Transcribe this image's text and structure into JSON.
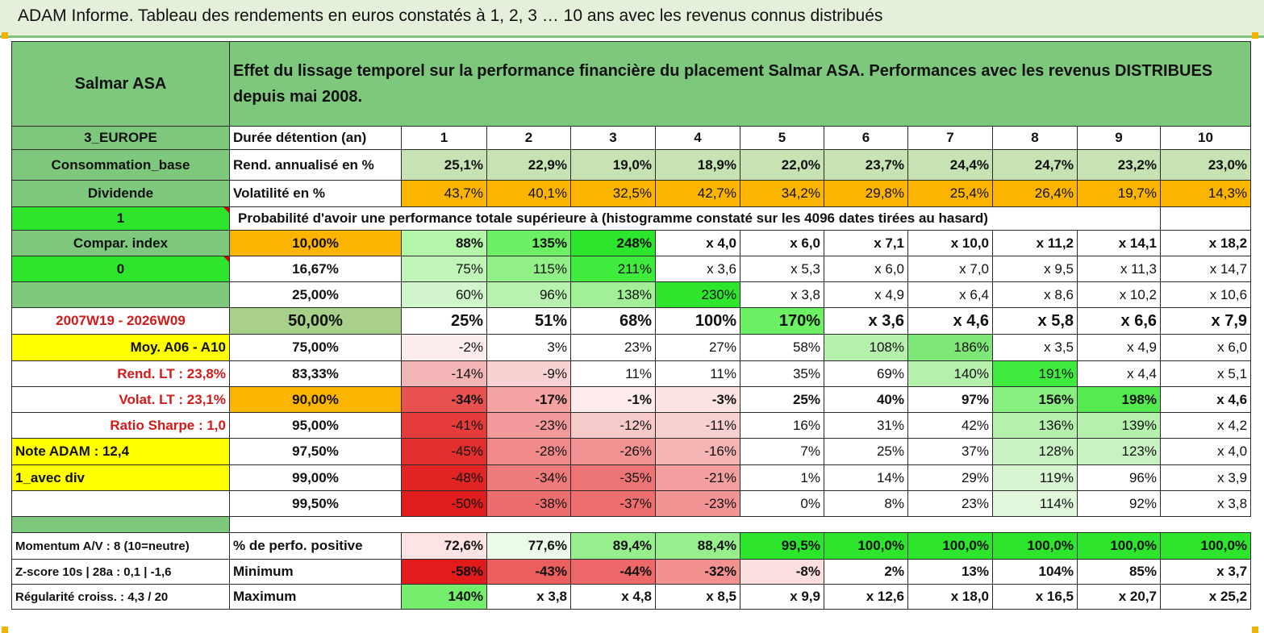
{
  "title": "ADAM Informe. Tableau des rendements en euros constatés à 1, 2, 3 … 10 ans avec les revenus connus distribués",
  "colors": {
    "header_green": "#7ec87e",
    "bright_green": "#2ce52c",
    "orange": "#fbb400",
    "yellow": "#ffff00",
    "light_green": "#c7e3b4",
    "sage": "#a7d08b"
  },
  "company": "Salmar ASA",
  "description": "Effet du lissage temporel sur la performance financière du placement Salmar ASA. Performances avec les revenus DISTRIBUES depuis mai 2008.",
  "rows": [
    {
      "left": "3_EUROPE",
      "label": "Durée détention (an)",
      "cells": [
        "1",
        "2",
        "3",
        "4",
        "5",
        "6",
        "7",
        "8",
        "9",
        "10"
      ]
    },
    {
      "left": "Consommation_base",
      "label": "Rend. annualisé en %",
      "cells": [
        "25,1%",
        "22,9%",
        "19,0%",
        "18,9%",
        "22,0%",
        "23,7%",
        "24,4%",
        "24,7%",
        "23,2%",
        "23,0%"
      ]
    },
    {
      "left": "Dividende",
      "label": "Volatilité en %",
      "cells": [
        "43,7%",
        "40,1%",
        "32,5%",
        "42,7%",
        "34,2%",
        "29,8%",
        "25,4%",
        "26,4%",
        "19,7%",
        "14,3%"
      ]
    },
    {
      "left": "1",
      "label": "Probabilité d'avoir une performance totale supérieure à (histogramme constaté sur les 4096 dates tirées au hasard)",
      "cells": []
    },
    {
      "left": "Compar. index",
      "label": "10,00%",
      "cells": [
        "88%",
        "135%",
        "248%",
        "x 4,0",
        "x 6,0",
        "x 7,1",
        "x 10,0",
        "x 11,2",
        "x 14,1",
        "x 18,2"
      ]
    },
    {
      "left": "0",
      "label": "16,67%",
      "cells": [
        "75%",
        "115%",
        "211%",
        "x 3,6",
        "x 5,3",
        "x 6,0",
        "x 7,0",
        "x 9,5",
        "x 11,3",
        "x 14,7"
      ]
    },
    {
      "left": "",
      "label": "25,00%",
      "cells": [
        "60%",
        "96%",
        "138%",
        "230%",
        "x 3,8",
        "x 4,9",
        "x 6,4",
        "x 8,6",
        "x 10,2",
        "x 10,6"
      ]
    },
    {
      "left": "2007W19 - 2026W09",
      "label": "50,00%",
      "cells": [
        "25%",
        "51%",
        "68%",
        "100%",
        "170%",
        "x 3,6",
        "x 4,6",
        "x 5,8",
        "x 6,6",
        "x 7,9"
      ]
    },
    {
      "left": "Moy. A06 - A10",
      "label": "75,00%",
      "cells": [
        "-2%",
        "3%",
        "23%",
        "27%",
        "58%",
        "108%",
        "186%",
        "x 3,5",
        "x 4,9",
        "x 6,0"
      ]
    },
    {
      "left": "Rend. LT :   23,8%",
      "label": "83,33%",
      "cells": [
        "-14%",
        "-9%",
        "11%",
        "11%",
        "35%",
        "69%",
        "140%",
        "191%",
        "x 4,4",
        "x 5,1"
      ]
    },
    {
      "left": "Volat. LT :   23,1%",
      "label": "90,00%",
      "cells": [
        "-34%",
        "-17%",
        "-1%",
        "-3%",
        "25%",
        "40%",
        "97%",
        "156%",
        "198%",
        "x 4,6"
      ]
    },
    {
      "left": "Ratio Sharpe :    1,0",
      "label": "95,00%",
      "cells": [
        "-41%",
        "-23%",
        "-12%",
        "-11%",
        "16%",
        "31%",
        "42%",
        "136%",
        "139%",
        "x 4,2"
      ]
    },
    {
      "left": "Note ADAM : 12,4",
      "label": "97,50%",
      "cells": [
        "-45%",
        "-28%",
        "-26%",
        "-16%",
        "7%",
        "25%",
        "37%",
        "128%",
        "123%",
        "x 4,0"
      ]
    },
    {
      "left": "1_avec div",
      "label": "99,00%",
      "cells": [
        "-48%",
        "-34%",
        "-35%",
        "-21%",
        "1%",
        "14%",
        "29%",
        "119%",
        "96%",
        "x 3,9"
      ]
    },
    {
      "left": "",
      "label": "99,50%",
      "cells": [
        "-50%",
        "-38%",
        "-37%",
        "-23%",
        "0%",
        "8%",
        "23%",
        "114%",
        "92%",
        "x 3,8"
      ]
    },
    {
      "left": "",
      "label": "",
      "cells": []
    },
    {
      "left": "Momentum A/V : 8 (10=neutre)",
      "label": "% de perfo. positive",
      "cells": [
        "72,6%",
        "77,6%",
        "89,4%",
        "88,4%",
        "99,5%",
        "100,0%",
        "100,0%",
        "100,0%",
        "100,0%",
        "100,0%"
      ]
    },
    {
      "left": "Z-score 10s | 28a : 0,1 | -1,6",
      "label": "Minimum",
      "cells": [
        "-58%",
        "-43%",
        "-44%",
        "-32%",
        "-8%",
        "2%",
        "13%",
        "104%",
        "85%",
        "x 3,7"
      ]
    },
    {
      "left": "Régularité croiss. : 4,3 / 20",
      "label": "Maximum",
      "cells": [
        "140%",
        "x 3,8",
        "x 4,8",
        "x 8,5",
        "x 9,9",
        "x 12,6",
        "x 18,0",
        "x 16,5",
        "x 20,7",
        "x 25,2"
      ]
    }
  ]
}
